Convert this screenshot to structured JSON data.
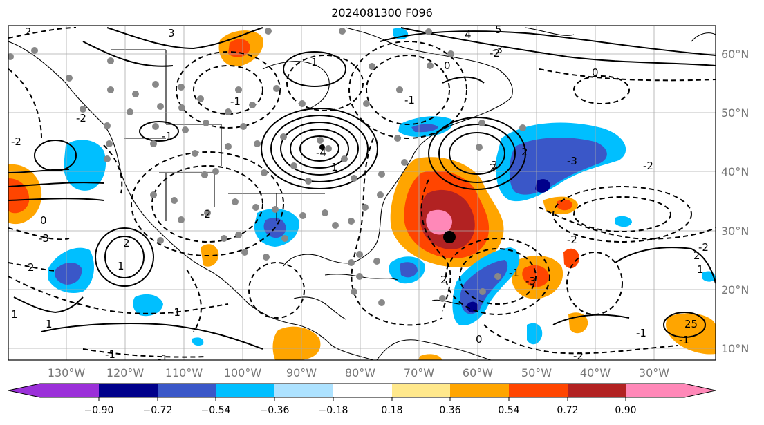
{
  "title": "2024081300 F096",
  "lon_labels": [
    "130°W",
    "120°W",
    "110°W",
    "100°W",
    "90°W",
    "80°W",
    "70°W",
    "60°W",
    "50°W",
    "40°W",
    "30°W"
  ],
  "lat_labels": [
    "60°N",
    "50°N",
    "40°N",
    "30°N",
    "20°N",
    "10°N"
  ],
  "colorbar": {
    "ticks": [
      "−0.90",
      "−0.72",
      "−0.54",
      "−0.36",
      "−0.18",
      "0.18",
      "0.36",
      "0.54",
      "0.72",
      "0.90"
    ],
    "colors": [
      "#9b30d9",
      "#00008b",
      "#3a57c8",
      "#00bfff",
      "#ade2ff",
      "#ffffff",
      "#ffe88c",
      "#ffa500",
      "#ff4500",
      "#b22222",
      "#ff88b8"
    ]
  },
  "contour_labels": [
    "2",
    "3",
    "1",
    "-1",
    "0",
    "-2",
    "-3",
    "4",
    "5",
    "-4",
    "2",
    "3",
    "1",
    "0",
    "-1",
    "-2",
    "2",
    "-2",
    "-1",
    "0",
    "-3",
    "1",
    "2",
    "2",
    "-3",
    "2",
    "-1",
    "-2",
    "-3",
    "1",
    "1",
    "-1",
    "0",
    "-2",
    "-1",
    "-1",
    "-2",
    "1",
    "2",
    "-1",
    "25",
    "-1",
    "-2",
    "-2"
  ]
}
